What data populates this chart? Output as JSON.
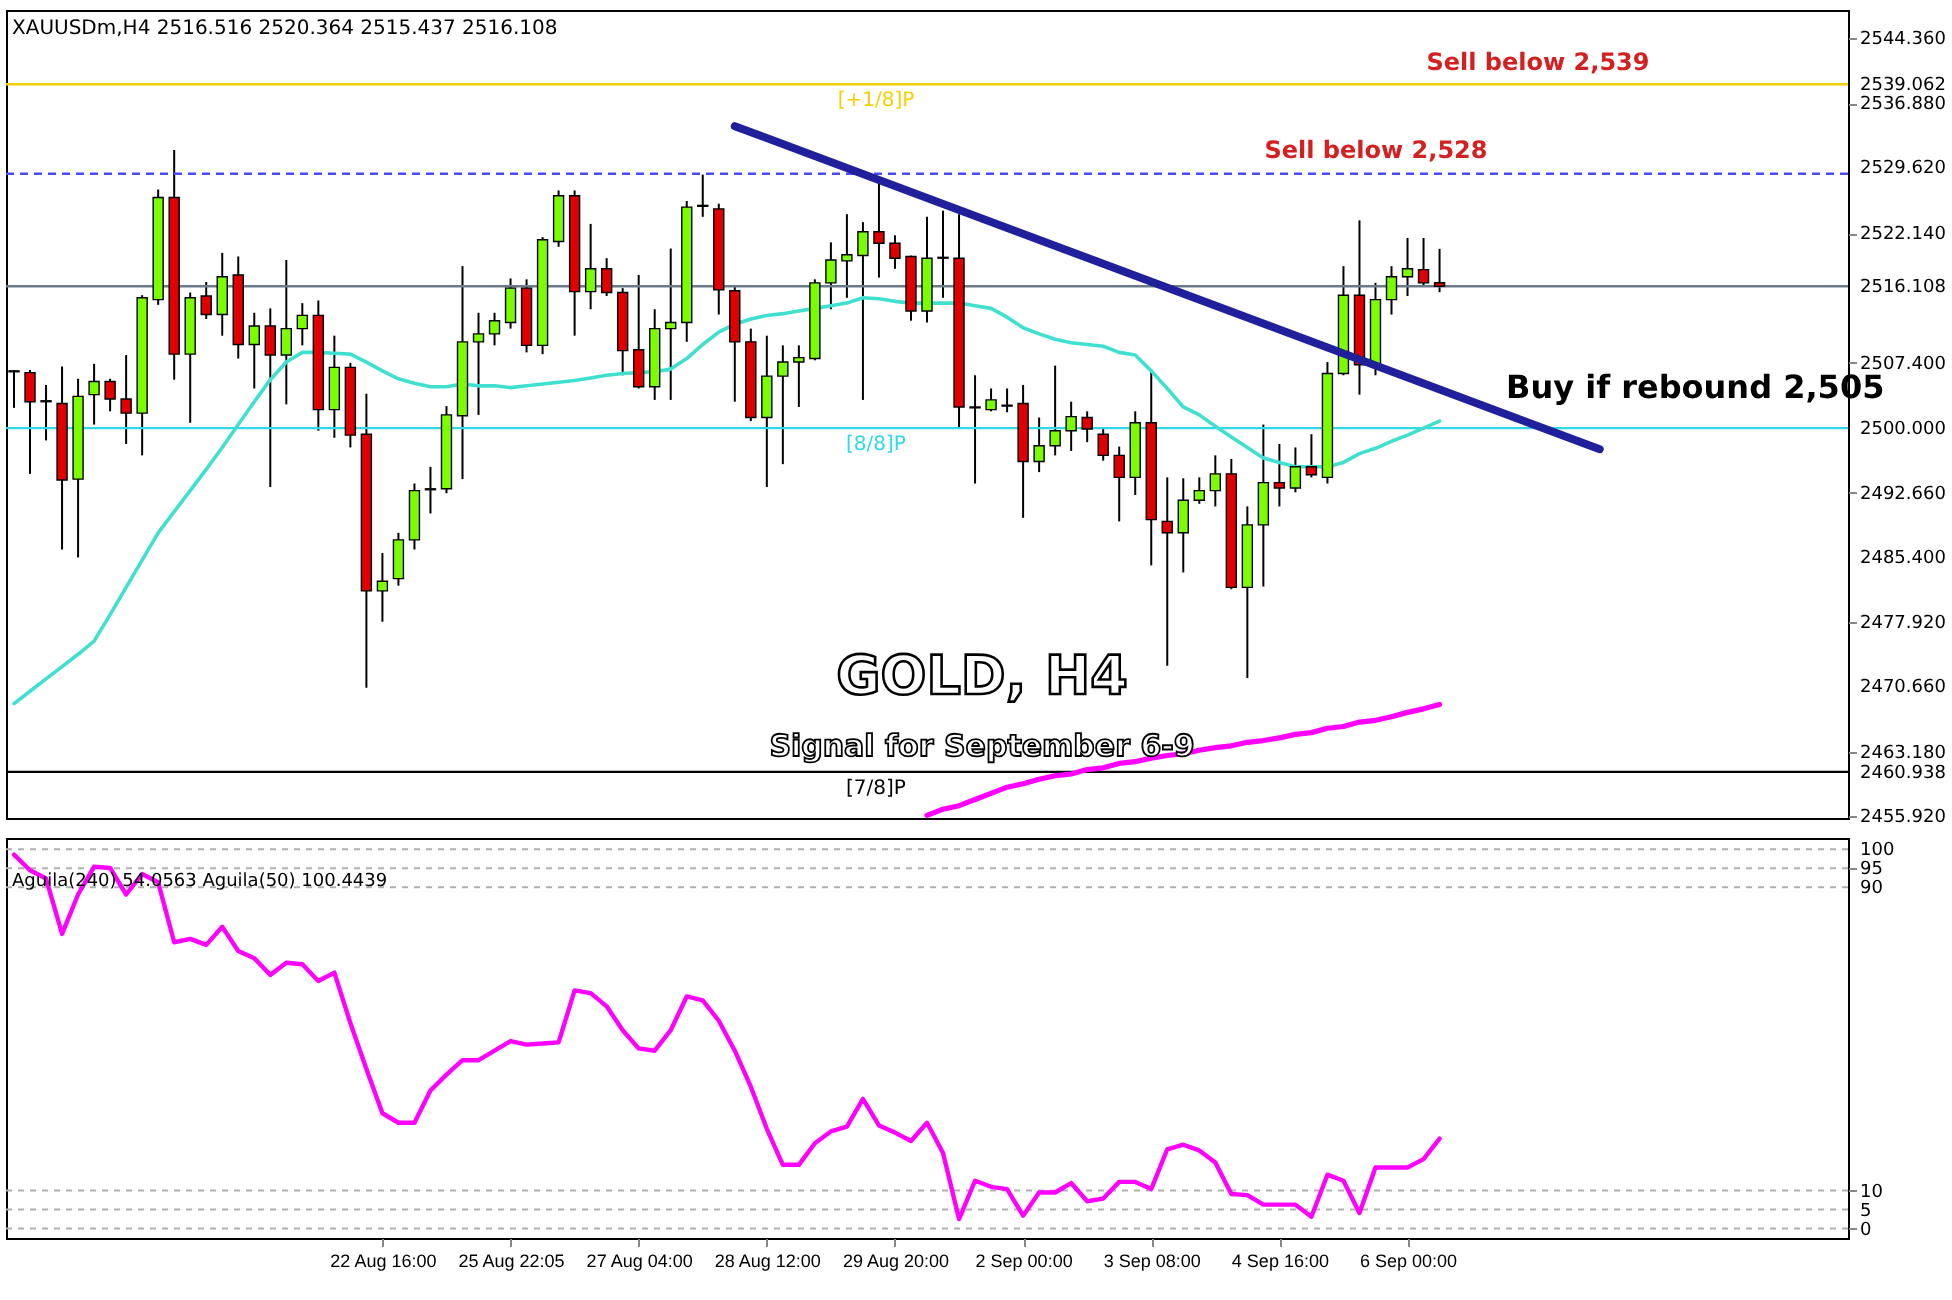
{
  "chart_data": [
    {
      "type": "candlestick",
      "title": "GOLD, H4",
      "subtitle": "Signal for September 6-9",
      "annotations": [
        "XAUUSDm,H4 2516.516 2520.364 2515.437 2516.108",
        {
          "text": "Sell below 2,528",
          "y": 2528.9
        },
        {
          "text": "Sell below 2,539",
          "y": 2539.062
        },
        "Buy if rebound 2,505"
      ],
      "categories": [
        null,
        null,
        null,
        null,
        null,
        null,
        null,
        null,
        null,
        null,
        null,
        null,
        null,
        null,
        null,
        null,
        null,
        null,
        null,
        null,
        null,
        null,
        null,
        null,
        null,
        null,
        null,
        null,
        null,
        null,
        null,
        null,
        null,
        null,
        null,
        null,
        null,
        null,
        null,
        null,
        null,
        null,
        null,
        null,
        null,
        null,
        null,
        null,
        null,
        null,
        null,
        null,
        null,
        null,
        null,
        null,
        null,
        null,
        null,
        null,
        null,
        null,
        null,
        null,
        null,
        null,
        null,
        null,
        null,
        null,
        null,
        null,
        null,
        null,
        null,
        null,
        null,
        null,
        null,
        null,
        null,
        null,
        null,
        null,
        null,
        null,
        null,
        null,
        null,
        null,
        null,
        null,
        null,
        null,
        null,
        null,
        null,
        null,
        null,
        null,
        null,
        null,
        null,
        null,
        null,
        null,
        null,
        null,
        null,
        null,
        null,
        null,
        null,
        null,
        null
      ],
      "ohlc": [
        [
          2506.4,
          2506.6,
          2502.3,
          2506.5
        ],
        [
          2506.3,
          2506.6,
          2494.8,
          2503.0
        ],
        [
          2503.0,
          2504.9,
          2498.6,
          2503.1
        ],
        [
          2502.8,
          2507.0,
          2486.2,
          2494.1
        ],
        [
          2494.2,
          2505.6,
          2485.3,
          2503.6
        ],
        [
          2503.8,
          2507.3,
          2500.4,
          2505.3
        ],
        [
          2505.3,
          2505.6,
          2501.9,
          2503.3
        ],
        [
          2503.3,
          2508.3,
          2498.2,
          2501.7
        ],
        [
          2501.7,
          2515.1,
          2496.9,
          2514.8
        ],
        [
          2514.6,
          2527.1,
          2514.0,
          2526.2
        ],
        [
          2526.2,
          2531.6,
          2505.5,
          2508.4
        ],
        [
          2508.4,
          2515.4,
          2500.6,
          2514.8
        ],
        [
          2515.0,
          2516.6,
          2512.4,
          2512.9
        ],
        [
          2512.9,
          2519.9,
          2510.5,
          2517.2
        ],
        [
          2517.4,
          2519.5,
          2507.9,
          2509.5
        ],
        [
          2509.5,
          2513.1,
          2504.5,
          2511.6
        ],
        [
          2511.6,
          2513.6,
          2493.3,
          2508.3
        ],
        [
          2508.3,
          2519.1,
          2502.7,
          2511.3
        ],
        [
          2511.3,
          2514.2,
          2509.4,
          2512.8
        ],
        [
          2512.8,
          2514.5,
          2499.7,
          2502.1
        ],
        [
          2502.1,
          2510.5,
          2498.9,
          2506.9
        ],
        [
          2506.9,
          2507.4,
          2497.8,
          2499.2
        ],
        [
          2499.3,
          2503.9,
          2470.5,
          2481.5
        ],
        [
          2481.5,
          2485.8,
          2478.0,
          2482.6
        ],
        [
          2482.9,
          2488.1,
          2482.1,
          2487.3
        ],
        [
          2487.3,
          2493.7,
          2486.2,
          2492.9
        ],
        [
          2493.0,
          2495.6,
          2490.3,
          2493.1
        ],
        [
          2493.1,
          2502.5,
          2492.6,
          2501.5
        ],
        [
          2501.4,
          2518.4,
          2494.2,
          2509.8
        ],
        [
          2509.8,
          2513.1,
          2501.5,
          2510.7
        ],
        [
          2510.7,
          2513.1,
          2509.4,
          2512.2
        ],
        [
          2512.0,
          2517.0,
          2511.3,
          2515.9
        ],
        [
          2515.9,
          2516.9,
          2508.6,
          2509.4
        ],
        [
          2509.4,
          2521.7,
          2508.4,
          2521.4
        ],
        [
          2521.2,
          2527.0,
          2520.6,
          2526.4
        ],
        [
          2526.4,
          2527.0,
          2510.5,
          2515.5
        ],
        [
          2515.5,
          2523.2,
          2513.5,
          2518.1
        ],
        [
          2518.1,
          2519.3,
          2515.0,
          2515.4
        ],
        [
          2515.4,
          2515.9,
          2506.0,
          2508.8
        ],
        [
          2508.9,
          2517.4,
          2504.5,
          2504.7
        ],
        [
          2504.7,
          2513.5,
          2503.2,
          2511.3
        ],
        [
          2511.3,
          2520.4,
          2503.2,
          2512.0
        ],
        [
          2512.0,
          2525.8,
          2509.8,
          2525.1
        ],
        [
          2525.2,
          2528.8,
          2524.0,
          2525.3
        ],
        [
          2524.9,
          2525.5,
          2512.9,
          2515.7
        ],
        [
          2515.6,
          2516.1,
          2503.0,
          2509.8
        ],
        [
          2509.8,
          2511.3,
          2500.8,
          2501.2
        ],
        [
          2501.2,
          2510.5,
          2493.3,
          2505.9
        ],
        [
          2505.9,
          2509.4,
          2495.9,
          2507.5
        ],
        [
          2507.5,
          2509.4,
          2502.4,
          2508.0
        ],
        [
          2507.9,
          2516.9,
          2507.7,
          2516.5
        ],
        [
          2516.5,
          2521.1,
          2513.5,
          2519.1
        ],
        [
          2519.0,
          2524.3,
          2514.8,
          2519.7
        ],
        [
          2519.6,
          2523.4,
          2503.2,
          2522.3
        ],
        [
          2522.3,
          2528.3,
          2517.1,
          2521.0
        ],
        [
          2521.0,
          2521.9,
          2518.1,
          2519.3
        ],
        [
          2519.5,
          2519.6,
          2512.2,
          2513.3
        ],
        [
          2513.3,
          2524.0,
          2512.0,
          2519.3
        ],
        [
          2519.3,
          2524.7,
          2514.8,
          2519.4
        ],
        [
          2519.3,
          2524.3,
          2500.0,
          2502.4
        ],
        [
          2502.4,
          2506.0,
          2493.7,
          2502.3
        ],
        [
          2502.1,
          2504.5,
          2501.9,
          2503.2
        ],
        [
          2502.5,
          2504.5,
          2501.8,
          2502.6
        ],
        [
          2502.8,
          2504.9,
          2489.8,
          2496.2
        ],
        [
          2496.2,
          2501.2,
          2495.0,
          2498.0
        ],
        [
          2498.0,
          2507.1,
          2496.9,
          2499.7
        ],
        [
          2499.7,
          2503.0,
          2497.4,
          2501.3
        ],
        [
          2501.2,
          2501.9,
          2498.4,
          2499.9
        ],
        [
          2499.3,
          2500.0,
          2496.3,
          2496.9
        ],
        [
          2496.9,
          2497.9,
          2489.4,
          2494.4
        ],
        [
          2494.4,
          2501.9,
          2492.4,
          2500.6
        ],
        [
          2500.6,
          2506.4,
          2484.4,
          2489.6
        ],
        [
          2489.4,
          2494.4,
          2473.0,
          2488.1
        ],
        [
          2488.1,
          2494.3,
          2483.6,
          2491.8
        ],
        [
          2491.8,
          2494.4,
          2491.4,
          2492.9
        ],
        [
          2492.9,
          2496.9,
          2491.1,
          2494.8
        ],
        [
          2494.8,
          2496.5,
          2481.7,
          2481.9
        ],
        [
          2481.9,
          2491.1,
          2471.6,
          2489.0
        ],
        [
          2489.0,
          2500.4,
          2482.0,
          2493.8
        ],
        [
          2493.8,
          2498.2,
          2491.1,
          2493.2
        ],
        [
          2493.2,
          2497.8,
          2492.7,
          2495.6
        ],
        [
          2495.6,
          2499.3,
          2494.4,
          2494.7
        ],
        [
          2494.4,
          2507.5,
          2493.7,
          2506.2
        ],
        [
          2506.2,
          2518.4,
          2506.0,
          2515.1
        ],
        [
          2515.1,
          2523.6,
          2503.8,
          2507.2
        ],
        [
          2507.2,
          2516.5,
          2506.0,
          2514.6
        ],
        [
          2514.6,
          2518.4,
          2512.9,
          2517.2
        ],
        [
          2517.2,
          2521.6,
          2515.0,
          2518.1
        ],
        [
          2518.0,
          2521.6,
          2516.1,
          2516.5
        ],
        [
          2516.516,
          2520.364,
          2515.437,
          2516.108
        ],
        null,
        null,
        null,
        null,
        null,
        null,
        null,
        null,
        null,
        null,
        null,
        null,
        null,
        null,
        null,
        null,
        null,
        null,
        null,
        null,
        null,
        null,
        null,
        null,
        null
      ],
      "colors": [
        "#7cfc00",
        "#e00000",
        "#7cfc00",
        "#e00000",
        "#7cfc00",
        "#7cfc00",
        "#e00000",
        "#e00000",
        "#7cfc00",
        "#7cfc00",
        "#e00000",
        "#7cfc00",
        "#e00000",
        "#7cfc00",
        "#e00000",
        "#7cfc00",
        "#e00000",
        "#7cfc00",
        "#7cfc00",
        "#e00000",
        "#7cfc00",
        "#e00000",
        "#e00000",
        "#7cfc00",
        "#7cfc00",
        "#7cfc00",
        "#7cfc00",
        "#7cfc00",
        "#7cfc00",
        "#7cfc00",
        "#7cfc00",
        "#7cfc00",
        "#e00000",
        "#7cfc00",
        "#7cfc00",
        "#e00000",
        "#7cfc00",
        "#e00000",
        "#e00000",
        "#e00000",
        "#7cfc00",
        "#7cfc00",
        "#7cfc00",
        "#7cfc00",
        "#e00000",
        "#e00000",
        "#e00000",
        "#7cfc00",
        "#7cfc00",
        "#7cfc00",
        "#7cfc00",
        "#7cfc00",
        "#7cfc00",
        "#7cfc00",
        "#e00000",
        "#e00000",
        "#e00000",
        "#7cfc00",
        "#7cfc00",
        "#e00000",
        "#e00000",
        "#7cfc00",
        "#7cfc00",
        "#e00000",
        "#7cfc00",
        "#7cfc00",
        "#7cfc00",
        "#e00000",
        "#e00000",
        "#e00000",
        "#7cfc00",
        "#e00000",
        "#e00000",
        "#7cfc00",
        "#7cfc00",
        "#7cfc00",
        "#e00000",
        "#7cfc00",
        "#7cfc00",
        "#e00000",
        "#7cfc00",
        "#e00000",
        "#7cfc00",
        "#7cfc00",
        "#e00000",
        "#7cfc00",
        "#7cfc00",
        "#7cfc00",
        "#e00000",
        "#e00000",
        null,
        null,
        null,
        null,
        null,
        null,
        null,
        null,
        null,
        null,
        null,
        null,
        null,
        null,
        null,
        null,
        null,
        null,
        null,
        null,
        null,
        null,
        null,
        null,
        null
      ],
      "series": [
        {
          "type": "line",
          "color": "#40e0d0",
          "values": [
            2468.7,
            2470.1,
            2471.5,
            2472.9,
            2474.3,
            2475.8,
            2478.8,
            2481.9,
            2485.0,
            2488.1,
            2490.5,
            2492.9,
            2495.3,
            2497.8,
            2500.4,
            2503.0,
            2505.5,
            2507.5,
            2508.6,
            2508.6,
            2508.5,
            2508.4,
            2507.5,
            2506.5,
            2505.6,
            2505.1,
            2504.7,
            2504.7,
            2505.0,
            2504.8,
            2504.8,
            2504.6,
            2504.8,
            2505.0,
            2505.2,
            2505.4,
            2505.7,
            2506.0,
            2506.2,
            2506.3,
            2506.4,
            2506.7,
            2507.9,
            2509.5,
            2510.9,
            2511.8,
            2512.4,
            2512.8,
            2513.0,
            2513.3,
            2513.6,
            2513.9,
            2514.2,
            2514.8,
            2514.7,
            2514.4,
            2514.2,
            2514.2,
            2514.2,
            2514.2,
            2513.9,
            2513.6,
            2512.6,
            2511.4,
            2510.7,
            2510.1,
            2509.7,
            2509.5,
            2509.3,
            2508.6,
            2508.3,
            2506.5,
            2504.5,
            2502.4,
            2501.5,
            2500.2,
            2499.0,
            2497.8,
            2496.6,
            2496.1,
            2495.6,
            2495.6,
            2495.6,
            2496.1,
            2497.1,
            2497.7,
            2498.5,
            2499.2,
            2500.0,
            2500.8,
            null,
            null,
            null,
            null,
            null,
            null,
            null,
            null,
            null,
            null,
            null,
            null,
            null,
            null,
            null,
            null,
            null,
            null,
            null,
            null,
            null,
            null,
            null,
            null,
            null
          ]
        },
        {
          "type": "line",
          "color": "#ff00ff",
          "values": [
            null,
            null,
            null,
            null,
            null,
            null,
            null,
            null,
            null,
            null,
            null,
            null,
            null,
            null,
            null,
            null,
            null,
            null,
            null,
            null,
            null,
            null,
            null,
            null,
            null,
            null,
            null,
            null,
            null,
            null,
            null,
            null,
            null,
            null,
            null,
            null,
            null,
            null,
            null,
            null,
            null,
            null,
            null,
            null,
            null,
            null,
            null,
            null,
            null,
            null,
            null,
            null,
            null,
            null,
            null,
            null,
            null,
            2456.0,
            2456.7,
            2457.1,
            2457.8,
            2458.5,
            2459.2,
            2459.6,
            2460.1,
            2460.5,
            2460.7,
            2461.2,
            2461.4,
            2461.9,
            2462.1,
            2462.5,
            2462.8,
            2463.0,
            2463.4,
            2463.7,
            2463.9,
            2464.3,
            2464.5,
            2464.8,
            2465.2,
            2465.4,
            2465.9,
            2466.1,
            2466.6,
            2466.8,
            2467.2,
            2467.7,
            2468.1,
            2468.6,
            null,
            null,
            null,
            null,
            null,
            null,
            null,
            null,
            null,
            null,
            null,
            null,
            null,
            null,
            null,
            null,
            null,
            null,
            null,
            null,
            null,
            null,
            null,
            null,
            null
          ]
        },
        {
          "type": "line",
          "color": "#20209c",
          "values": [
            null,
            null,
            null,
            null,
            null,
            null,
            null,
            null,
            null,
            null,
            null,
            null,
            null,
            null,
            null,
            null,
            null,
            null,
            null,
            null,
            null,
            null,
            null,
            null,
            null,
            null,
            null,
            null,
            null,
            null,
            null,
            null,
            null,
            null,
            null,
            null,
            null,
            null,
            null,
            null,
            null,
            null,
            null,
            null,
            null,
            2534.3,
            null,
            null,
            null,
            null,
            null,
            null,
            null,
            null,
            null,
            null,
            null,
            null,
            null,
            null,
            null,
            null,
            null,
            null,
            null,
            null,
            null,
            null,
            null,
            null,
            null,
            null,
            null,
            null,
            null,
            null,
            null,
            null,
            null,
            null,
            null,
            null,
            null,
            null,
            null,
            null,
            null,
            null,
            null,
            null,
            null,
            null,
            null,
            null,
            null,
            null,
            null,
            null,
            null,
            2497.6,
            null,
            null,
            null,
            null,
            null,
            null,
            null,
            null,
            null,
            null,
            null,
            null,
            null,
            null,
            null
          ]
        }
      ],
      "ylim": [
        2455.7,
        2547.5
      ],
      "yticks": [
        {
          "value": 2544.36,
          "label": "2544.360"
        },
        {
          "value": 2536.88,
          "label": "2536.880"
        },
        {
          "value": 2529.62,
          "label": "2529.620"
        },
        {
          "value": 2522.14,
          "label": "2522.140"
        },
        {
          "value": 2507.4,
          "label": "2507.400"
        },
        {
          "value": 2492.66,
          "label": "2492.660"
        },
        {
          "value": 2485.4,
          "label": "2485.400"
        },
        {
          "value": 2477.92,
          "label": "2477.920"
        },
        {
          "value": 2470.66,
          "label": "2470.660"
        },
        {
          "value": 2463.18,
          "label": "2463.180"
        },
        {
          "value": 2455.92,
          "label": "2455.920"
        },
        {
          "value": 2539.062,
          "label": "2539.062"
        },
        {
          "value": 2516.108,
          "label": "2516.108"
        },
        {
          "value": 2500.0,
          "label": "2500.000"
        },
        {
          "value": 2460.938,
          "label": "2460.938"
        }
      ],
      "ref_lines": [
        {
          "axis": "y",
          "value": 2539.062,
          "label": "[+1/8]P",
          "color": "#f5d000",
          "line_style": "solid"
        },
        {
          "axis": "y",
          "value": 2528.9,
          "color": "#4a4aff",
          "line_style": "dashed"
        },
        {
          "axis": "y",
          "value": 2516.108,
          "color": "#6a7a8a",
          "line_style": "solid"
        },
        {
          "axis": "y",
          "value": 2500.0,
          "label": "[8/8]P",
          "color": "#30d8e8",
          "line_style": "solid"
        },
        {
          "axis": "y",
          "value": 2460.938,
          "label": "[7/8]P",
          "color": "#000000",
          "line_style": "solid"
        }
      ],
      "tick_labels": "y"
    },
    {
      "type": "line",
      "annotations": [
        "Aguila(240) 54.0563  Aguila(50) 100.4439"
      ],
      "categories": [
        null,
        null,
        null,
        null,
        null,
        null,
        null,
        null,
        null,
        null,
        null,
        null,
        null,
        null,
        null,
        null,
        null,
        null,
        null,
        null,
        null,
        null,
        null,
        "22 Aug 16:00",
        null,
        null,
        null,
        null,
        null,
        null,
        null,
        "25 Aug 22:05",
        null,
        null,
        null,
        null,
        null,
        null,
        null,
        "27 Aug 04:00",
        null,
        null,
        null,
        null,
        null,
        null,
        null,
        "28 Aug 12:00",
        null,
        null,
        null,
        null,
        null,
        null,
        null,
        "29 Aug 20:00",
        null,
        null,
        null,
        null,
        null,
        null,
        null,
        "2 Sep 00:00",
        null,
        null,
        null,
        null,
        null,
        null,
        null,
        "3 Sep 08:00",
        null,
        null,
        null,
        null,
        null,
        null,
        null,
        "4 Sep 16:00",
        null,
        null,
        null,
        null,
        null,
        null,
        null,
        "6 Sep 00:00",
        null,
        null,
        null,
        null,
        null,
        null,
        null,
        null,
        null,
        null,
        null,
        null,
        null,
        null,
        null,
        null,
        null,
        null,
        null,
        null,
        null,
        null,
        null,
        null,
        null,
        null,
        null
      ],
      "series": [
        {
          "color": "#ff00ff",
          "values": [
            98.6,
            94.5,
            92.3,
            77.7,
            88.1,
            95.4,
            95.1,
            88.1,
            93.5,
            91.3,
            75.5,
            76.4,
            74.8,
            79.6,
            73.2,
            71.3,
            66.9,
            70.1,
            69.7,
            65.3,
            67.5,
            54.2,
            42.1,
            30.4,
            27.9,
            27.9,
            36.4,
            40.6,
            44.4,
            44.4,
            46.9,
            49.4,
            48.5,
            48.8,
            49.1,
            62.8,
            62.1,
            58.6,
            52.3,
            47.5,
            46.9,
            52.3,
            61.2,
            60.2,
            54.8,
            46.9,
            37.4,
            26.3,
            16.8,
            16.8,
            22.5,
            25.6,
            26.9,
            34.2,
            27.2,
            25.3,
            23.1,
            27.9,
            19.9,
            2.5,
            12.6,
            11.0,
            10.4,
            3.4,
            9.5,
            9.5,
            12.0,
            7.2,
            7.9,
            12.3,
            12.3,
            10.4,
            20.9,
            22.1,
            20.6,
            17.4,
            9.1,
            8.8,
            6.3,
            6.3,
            6.3,
            3.1,
            14.2,
            12.6,
            4.1,
            16.1,
            16.1,
            16.1,
            18.3,
            23.7,
            null,
            null,
            null,
            null,
            null,
            null,
            null,
            null,
            null,
            null,
            null,
            null,
            null,
            null,
            null,
            null,
            null,
            null,
            null,
            null,
            null,
            null,
            null,
            null,
            null
          ]
        }
      ],
      "ylim": [
        -2.5,
        103
      ],
      "yticks": [
        0,
        5,
        10,
        90,
        95,
        100
      ],
      "grid": "y"
    }
  ]
}
